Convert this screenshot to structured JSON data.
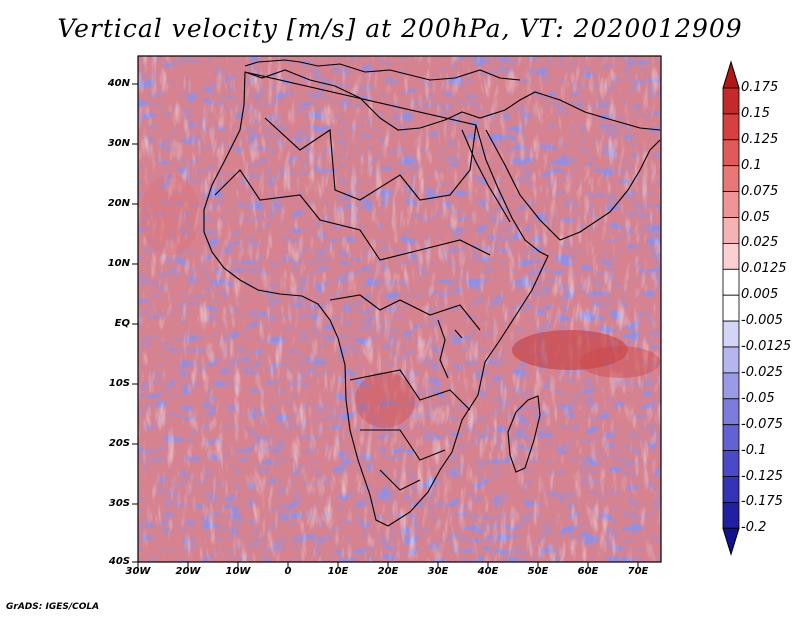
{
  "title": "Vertical velocity [m/s] at 200hPa, VT: 2020012909",
  "credit": "GrADS: IGES/COLA",
  "map": {
    "region": "Africa",
    "variable": "Vertical velocity",
    "units": "m/s",
    "level": "200hPa",
    "valid_time": "2020012909",
    "lon_range": [
      -30,
      75
    ],
    "lat_range": [
      -40,
      45
    ]
  },
  "axes": {
    "y_labels": [
      "40N",
      "30N",
      "20N",
      "10N",
      "EQ",
      "10S",
      "20S",
      "30S",
      "40S"
    ],
    "x_labels": [
      "30W",
      "20W",
      "10W",
      "0",
      "10E",
      "20E",
      "30E",
      "40E",
      "50E",
      "60E",
      "70E"
    ]
  },
  "colorbar": {
    "labels": [
      "0.175",
      "0.15",
      "0.125",
      "0.1",
      "0.075",
      "0.05",
      "0.025",
      "0.0125",
      "0.005",
      "-0.005",
      "-0.0125",
      "-0.025",
      "-0.05",
      "-0.075",
      "-0.1",
      "-0.125",
      "-0.175",
      "-0.2"
    ],
    "colors": [
      "#b01818",
      "#c52a2a",
      "#d64040",
      "#e05a5a",
      "#e87777",
      "#f09595",
      "#f6b3b3",
      "#fad0d0",
      "#ffffff",
      "#ffffff",
      "#d4d4f6",
      "#b6b6ee",
      "#9a9ae6",
      "#7c7cdc",
      "#6262d4",
      "#4a4ac8",
      "#3434b6",
      "#2020a2",
      "#121290"
    ]
  },
  "palette": {
    "red": "#e88a8a",
    "blue": "#8a8ae6",
    "deep_red": "#c03030"
  }
}
